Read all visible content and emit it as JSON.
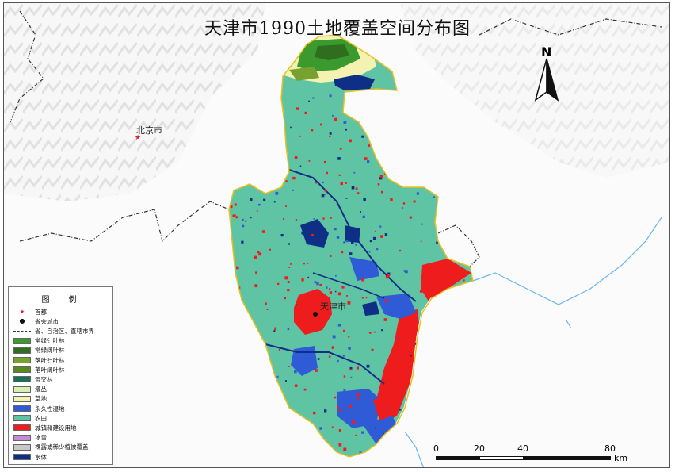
{
  "title": "天津市1990土地覆盖空间分布图",
  "places": {
    "beijing": "北京市",
    "tianjin": "天津市"
  },
  "north_label": "N",
  "legend": {
    "title": "图例",
    "items": [
      {
        "label": "首都",
        "symbol": "red-star-icon",
        "color": "#e0202a"
      },
      {
        "label": "省会城市",
        "symbol": "black-dot-icon",
        "color": "#111111"
      },
      {
        "label": "省、自治区、直辖市界",
        "symbol": "boundary-line-icon",
        "color": "#333333"
      },
      {
        "label": "常绿针叶林",
        "color": "#3a9a2e"
      },
      {
        "label": "常绿阔叶林",
        "color": "#2f6e1e"
      },
      {
        "label": "落叶针叶林",
        "color": "#77a230"
      },
      {
        "label": "落叶阔叶林",
        "color": "#5a8a1e"
      },
      {
        "label": "混交林",
        "color": "#1f6e55"
      },
      {
        "label": "灌丛",
        "color": "#d6efb3"
      },
      {
        "label": "草地",
        "color": "#f4f2b0"
      },
      {
        "label": "永久性湿地",
        "color": "#2f5cd6"
      },
      {
        "label": "农田",
        "color": "#5fc4a3"
      },
      {
        "label": "城镇和建设用地",
        "color": "#ee1c1c"
      },
      {
        "label": "冰雪",
        "color": "#c889d8"
      },
      {
        "label": "裸露或稀少植被覆盖",
        "color": "#c8c8c8"
      },
      {
        "label": "水体",
        "color": "#0f2f86"
      }
    ]
  },
  "scale": {
    "ticks": [
      "0",
      "20",
      "40",
      "80"
    ],
    "unit": "km"
  }
}
